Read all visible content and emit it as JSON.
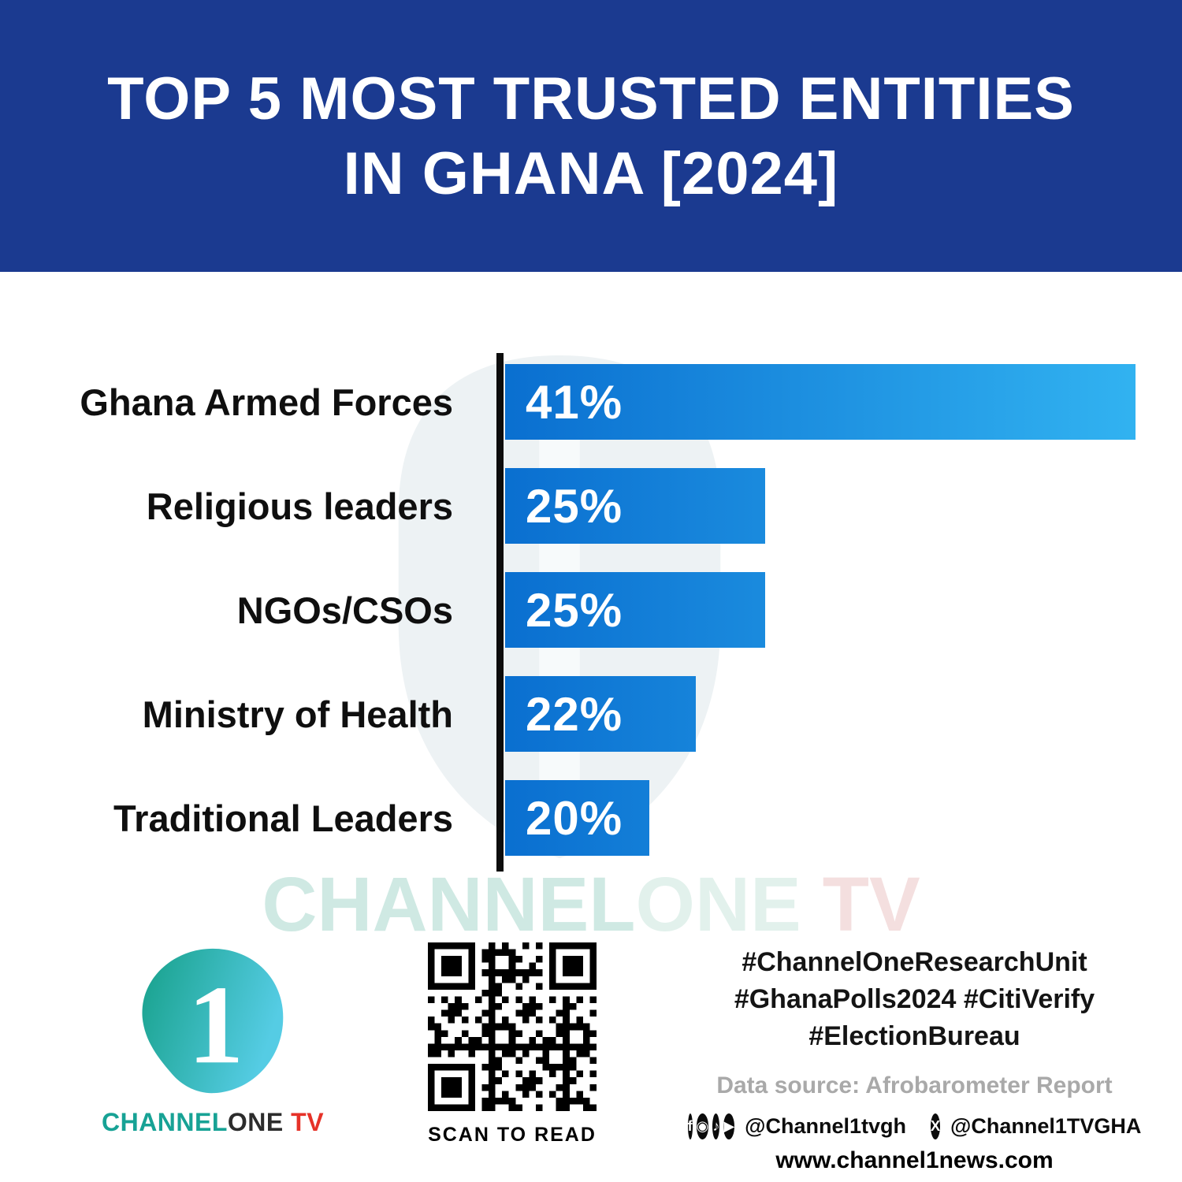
{
  "title": {
    "line1": "TOP 5 MOST TRUSTED ENTITIES",
    "line2": "IN GHANA [2024]"
  },
  "chart_data": {
    "type": "bar",
    "orientation": "horizontal",
    "title": "Top 5 Most Trusted Entities in Ghana [2024]",
    "categories": [
      "Ghana Armed Forces",
      "Religious leaders",
      "NGOs/CSOs",
      "Ministry of Health",
      "Traditional Leaders"
    ],
    "values": [
      41,
      25,
      25,
      22,
      20
    ],
    "value_labels": [
      "41%",
      "25%",
      "25%",
      "22%",
      "20%"
    ],
    "display_width_pct": [
      97.4,
      40.2,
      40.2,
      29.5,
      22.3
    ],
    "bar_gradient_start": "#0a6fd0",
    "bar_gradient_end": "#33b5f2",
    "axis_color": "#0d0d0d",
    "legend": "none",
    "grid": "off"
  },
  "watermark": {
    "part1": "CHANNEL",
    "part2": "ONE",
    "part3": " TV"
  },
  "footer": {
    "logo": {
      "numeral": "1",
      "wordmark_channel": "CHANNEL",
      "wordmark_one": "ONE",
      "wordmark_tv": " TV"
    },
    "qr_caption": "SCAN TO READ",
    "hashtags": [
      "#ChannelOneResearchUnit",
      "#GhanaPolls2024 #CitiVerify",
      "#ElectionBureau"
    ],
    "data_source": "Data source: Afrobarometer Report",
    "social": {
      "icons": [
        {
          "name": "facebook-icon",
          "glyph": "f"
        },
        {
          "name": "instagram-icon",
          "glyph": "◉"
        },
        {
          "name": "tiktok-icon",
          "glyph": "♪"
        },
        {
          "name": "youtube-icon",
          "glyph": "▶"
        },
        {
          "name": "x-icon",
          "glyph": "X"
        }
      ],
      "handle1": "@Channel1tvgh",
      "handle2": "@Channel1TVGHA"
    },
    "website": "www.channel1news.com"
  },
  "colors": {
    "header_bg": "#1b3a90",
    "logo_teal": "#17a295",
    "logo_red": "#e63228",
    "source_gray": "#a9a9a9"
  }
}
